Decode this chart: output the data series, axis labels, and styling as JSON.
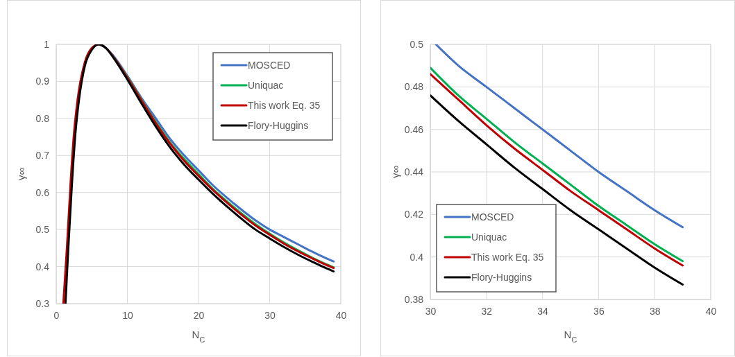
{
  "chart_data": [
    {
      "type": "line",
      "xlabel": "N$_{C}$",
      "ylabel": "γ∞",
      "xlim": [
        0,
        40
      ],
      "xticks": [
        0,
        10,
        20,
        30,
        40
      ],
      "ylim": [
        0.3,
        1
      ],
      "yticks": [
        0.3,
        0.4,
        0.5,
        0.6,
        0.7,
        0.8,
        0.9,
        1
      ],
      "grid": true,
      "legend": "top right",
      "marker": "none",
      "line_style": "solid",
      "series": [
        {
          "name": "MOSCED",
          "color": "#4472c4",
          "x": [
            6,
            7,
            8,
            10,
            12,
            14,
            16,
            18,
            20,
            22,
            25,
            28,
            30,
            32,
            34,
            36,
            38,
            39
          ],
          "values": [
            1.0,
            0.99,
            0.97,
            0.915,
            0.855,
            0.8,
            0.745,
            0.7,
            0.66,
            0.62,
            0.57,
            0.525,
            0.5,
            0.48,
            0.46,
            0.44,
            0.422,
            0.414
          ]
        },
        {
          "name": "Uniquac",
          "color": "#00b050",
          "x": [
            8,
            10,
            12,
            14,
            16,
            18,
            20,
            22,
            25,
            28,
            30,
            32,
            34,
            36,
            38,
            39
          ],
          "values": [
            0.968,
            0.912,
            0.85,
            0.79,
            0.735,
            0.69,
            0.65,
            0.61,
            0.56,
            0.515,
            0.489,
            0.465,
            0.444,
            0.424,
            0.406,
            0.398
          ]
        },
        {
          "name": "This work Eq. 35",
          "color": "#c00000",
          "x": [
            1.0,
            1.5,
            2,
            2.5,
            3,
            4,
            5,
            6,
            7,
            8,
            10,
            12,
            14,
            16,
            18,
            20,
            22,
            25,
            28,
            30,
            32,
            34,
            36,
            38,
            39
          ],
          "values": [
            0.3,
            0.45,
            0.62,
            0.76,
            0.85,
            0.95,
            0.99,
            1.0,
            0.99,
            0.967,
            0.91,
            0.848,
            0.787,
            0.732,
            0.685,
            0.645,
            0.607,
            0.556,
            0.511,
            0.486,
            0.462,
            0.441,
            0.422,
            0.404,
            0.396
          ]
        },
        {
          "name": "Flory-Huggins",
          "color": "#000000",
          "x": [
            1.3,
            1.7,
            2.2,
            2.7,
            3.2,
            4,
            5,
            6,
            7,
            8,
            10,
            12,
            14,
            16,
            18,
            20,
            22,
            25,
            28,
            30,
            32,
            34,
            36,
            38,
            39
          ],
          "values": [
            0.3,
            0.45,
            0.62,
            0.76,
            0.85,
            0.94,
            0.985,
            1.0,
            0.99,
            0.965,
            0.905,
            0.84,
            0.778,
            0.722,
            0.675,
            0.635,
            0.597,
            0.546,
            0.5,
            0.476,
            0.453,
            0.432,
            0.413,
            0.395,
            0.387
          ]
        }
      ]
    },
    {
      "type": "line",
      "xlabel": "N$_{C}$",
      "ylabel": "γ∞",
      "xlim": [
        30,
        40
      ],
      "xticks": [
        30,
        32,
        34,
        36,
        38,
        40
      ],
      "ylim": [
        0.38,
        0.5
      ],
      "yticks": [
        0.38,
        0.4,
        0.42,
        0.44,
        0.46,
        0.48,
        0.5
      ],
      "grid": true,
      "legend": "bottom left",
      "marker": "none",
      "line_style": "solid",
      "series": [
        {
          "name": "MOSCED",
          "color": "#4472c4",
          "x": [
            30.2,
            31,
            32,
            33,
            34,
            35,
            36,
            37,
            38,
            39
          ],
          "values": [
            0.5,
            0.49,
            0.48,
            0.47,
            0.46,
            0.45,
            0.44,
            0.431,
            0.422,
            0.414
          ]
        },
        {
          "name": "Uniquac",
          "color": "#00b050",
          "x": [
            30,
            31,
            32,
            33,
            34,
            35,
            36,
            37,
            38,
            39
          ],
          "values": [
            0.489,
            0.476,
            0.465,
            0.454,
            0.444,
            0.434,
            0.424,
            0.415,
            0.406,
            0.398
          ]
        },
        {
          "name": "This work Eq. 35",
          "color": "#c00000",
          "x": [
            30,
            31,
            32,
            33,
            34,
            35,
            36,
            37,
            38,
            39
          ],
          "values": [
            0.486,
            0.474,
            0.462,
            0.451,
            0.441,
            0.431,
            0.422,
            0.413,
            0.404,
            0.396
          ]
        },
        {
          "name": "Flory-Huggins",
          "color": "#000000",
          "x": [
            30,
            31,
            32,
            33,
            34,
            35,
            36,
            37,
            38,
            39
          ],
          "values": [
            0.476,
            0.464,
            0.453,
            0.442,
            0.432,
            0.422,
            0.413,
            0.404,
            0.395,
            0.387
          ]
        }
      ]
    }
  ]
}
